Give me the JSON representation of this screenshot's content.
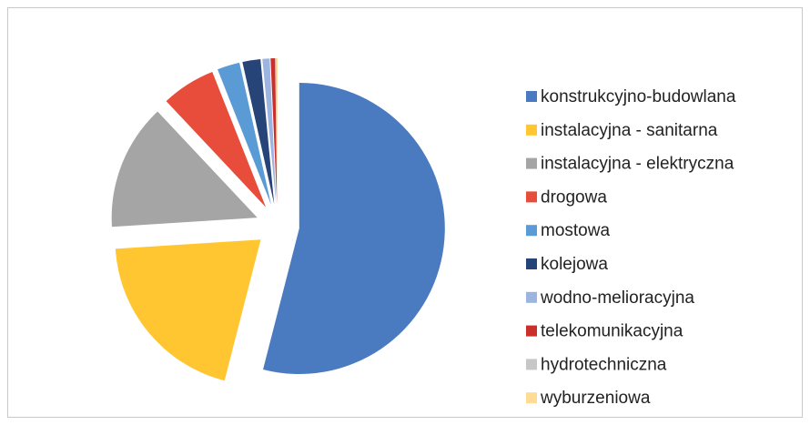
{
  "chart_data": {
    "type": "pie",
    "categories": [
      "konstrukcyjno-budowlana",
      "instalacyjna - sanitarna",
      "instalacyjna - elektryczna",
      "drogowa",
      "mostowa",
      "kolejowa",
      "wodno-melioracyjna",
      "telekomunikacyjna",
      "hydrotechniczna",
      "wyburzeniowa"
    ],
    "values": [
      54,
      20,
      14,
      6,
      2.5,
      2,
      0.8,
      0.5,
      0.1,
      0.1
    ],
    "colors": [
      "#4a7bc0",
      "#ffc631",
      "#a5a5a5",
      "#e84c3a",
      "#5b9bd5",
      "#264478",
      "#9db3e0",
      "#c9302c",
      "#c7c7c7",
      "#ffdc94"
    ],
    "legend": "right"
  }
}
